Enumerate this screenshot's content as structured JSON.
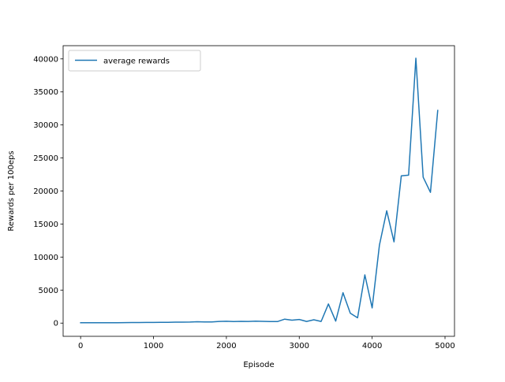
{
  "chart_data": {
    "type": "line",
    "title": "",
    "xlabel": "Episode",
    "ylabel": "Rewards per 100eps",
    "xlim": [
      -240,
      5130
    ],
    "ylim": [
      -2000,
      42000
    ],
    "xticks": [
      0,
      1000,
      2000,
      3000,
      4000,
      5000
    ],
    "xtick_labels": [
      "0",
      "1000",
      "2000",
      "3000",
      "4000",
      "5000"
    ],
    "yticks": [
      0,
      5000,
      10000,
      15000,
      20000,
      25000,
      30000,
      35000,
      40000
    ],
    "ytick_labels": [
      "0",
      "5000",
      "10000",
      "15000",
      "20000",
      "25000",
      "30000",
      "35000",
      "40000"
    ],
    "grid": false,
    "legend_position": "upper left",
    "series": [
      {
        "name": "average rewards",
        "color": "#1f77b4",
        "x": [
          0,
          100,
          200,
          300,
          400,
          500,
          600,
          700,
          800,
          900,
          1000,
          1100,
          1200,
          1300,
          1400,
          1500,
          1600,
          1700,
          1800,
          1900,
          2000,
          2100,
          2200,
          2300,
          2400,
          2500,
          2600,
          2700,
          2800,
          2900,
          3000,
          3100,
          3200,
          3300,
          3400,
          3500,
          3600,
          3700,
          3800,
          3900,
          4000,
          4100,
          4200,
          4300,
          4400,
          4500,
          4600,
          4700,
          4800,
          4900
        ],
        "values": [
          60,
          50,
          50,
          50,
          60,
          60,
          70,
          80,
          90,
          100,
          100,
          110,
          120,
          140,
          150,
          160,
          200,
          180,
          170,
          250,
          280,
          230,
          260,
          250,
          290,
          260,
          240,
          230,
          600,
          450,
          550,
          250,
          500,
          250,
          2900,
          300,
          4600,
          1500,
          800,
          7300,
          2300,
          11800,
          17000,
          12300,
          22300,
          22400,
          40100,
          22100,
          19800,
          32200
        ]
      }
    ]
  }
}
